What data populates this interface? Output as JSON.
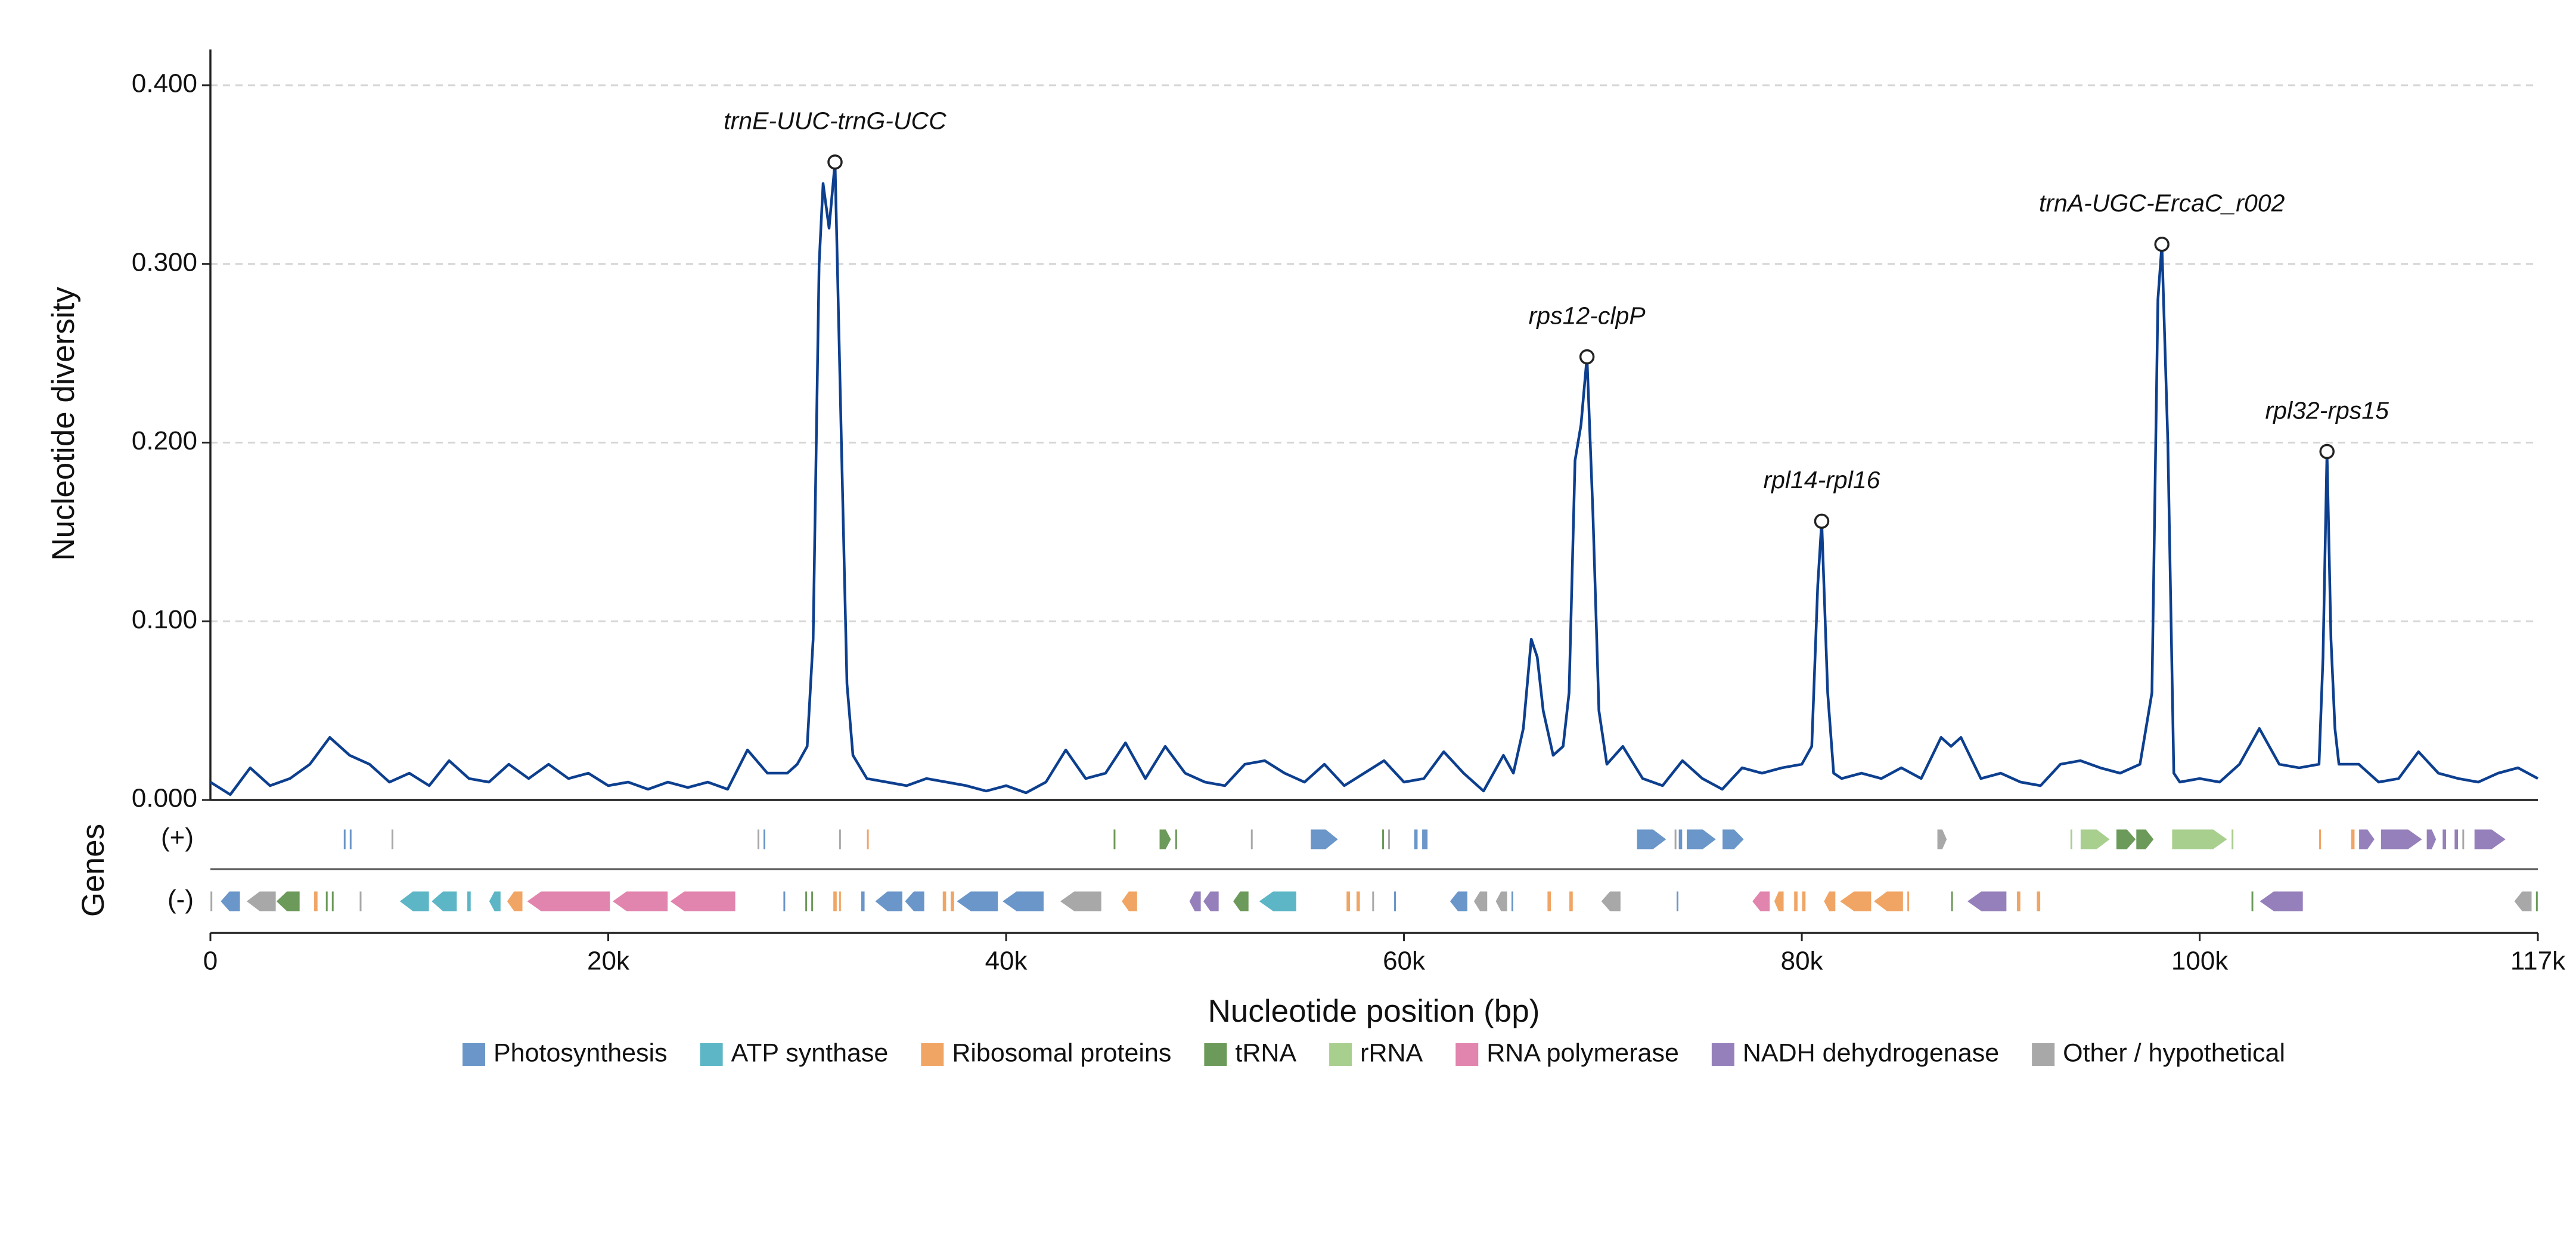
{
  "chart_data": {
    "type": "line",
    "xlabel": "Nucleotide position (bp)",
    "ylabel": "Nucleotide diversity",
    "track_label": "Genes",
    "strand_labels": [
      "(+)",
      "(-)"
    ],
    "xlim": [
      0,
      117000
    ],
    "ylim": [
      0,
      0.42
    ],
    "xticks": [
      0,
      {
        "value": 20000,
        "label": "20k"
      },
      {
        "value": 40000,
        "label": "40k"
      },
      {
        "value": 60000,
        "label": "60k"
      },
      {
        "value": 80000,
        "label": "80k"
      },
      {
        "value": 100000,
        "label": "100k"
      },
      {
        "value": 117000,
        "label": "117k"
      }
    ],
    "yticks": [
      {
        "value": 0,
        "label": "0.000"
      },
      {
        "value": 0.1,
        "label": "0.100"
      },
      {
        "value": 0.2,
        "label": "0.200"
      },
      {
        "value": 0.3,
        "label": "0.300"
      },
      {
        "value": 0.4,
        "label": "0.400"
      }
    ],
    "grid": true,
    "x": [
      0,
      1000,
      2000,
      3000,
      4000,
      5000,
      6000,
      7000,
      8000,
      9000,
      10000,
      11000,
      12000,
      13000,
      14000,
      15000,
      16000,
      17000,
      18000,
      19000,
      20000,
      21000,
      22000,
      23000,
      24000,
      25000,
      26000,
      27000,
      28000,
      29000,
      29500,
      30000,
      30300,
      30600,
      30800,
      31100,
      31400,
      31700,
      32000,
      32300,
      33000,
      34000,
      35000,
      36000,
      37000,
      38000,
      39000,
      40000,
      41000,
      42000,
      43000,
      44000,
      45000,
      46000,
      47000,
      48000,
      49000,
      50000,
      51000,
      52000,
      53000,
      54000,
      55000,
      56000,
      57000,
      58000,
      59000,
      60000,
      61000,
      62000,
      63000,
      64000,
      65000,
      65500,
      66000,
      66400,
      66700,
      67000,
      67500,
      68000,
      68300,
      68600,
      68900,
      69200,
      69500,
      69800,
      70200,
      71000,
      72000,
      73000,
      74000,
      75000,
      76000,
      77000,
      78000,
      79000,
      80000,
      80500,
      80800,
      81000,
      81300,
      81600,
      82000,
      83000,
      84000,
      85000,
      86000,
      87000,
      87500,
      88000,
      89000,
      90000,
      91000,
      92000,
      93000,
      94000,
      95000,
      96000,
      97000,
      97600,
      97900,
      98100,
      98400,
      98700,
      99000,
      100000,
      101000,
      102000,
      103000,
      104000,
      105000,
      106000,
      106200,
      106400,
      106600,
      106800,
      107000,
      108000,
      109000,
      110000,
      111000,
      112000,
      113000,
      114000,
      115000,
      116000,
      117000
    ],
    "series": [
      {
        "color": "#0d3f8f",
        "values": [
          0.01,
          0.003,
          0.018,
          0.008,
          0.012,
          0.02,
          0.035,
          0.025,
          0.02,
          0.01,
          0.015,
          0.008,
          0.022,
          0.012,
          0.01,
          0.02,
          0.012,
          0.02,
          0.012,
          0.015,
          0.008,
          0.01,
          0.006,
          0.01,
          0.007,
          0.01,
          0.006,
          0.028,
          0.015,
          0.015,
          0.02,
          0.03,
          0.09,
          0.3,
          0.345,
          0.32,
          0.357,
          0.21,
          0.065,
          0.025,
          0.012,
          0.01,
          0.008,
          0.012,
          0.01,
          0.008,
          0.005,
          0.008,
          0.004,
          0.01,
          0.028,
          0.012,
          0.015,
          0.032,
          0.012,
          0.03,
          0.015,
          0.01,
          0.008,
          0.02,
          0.022,
          0.015,
          0.01,
          0.02,
          0.008,
          0.015,
          0.022,
          0.01,
          0.012,
          0.027,
          0.015,
          0.005,
          0.025,
          0.015,
          0.04,
          0.09,
          0.08,
          0.05,
          0.025,
          0.03,
          0.06,
          0.19,
          0.21,
          0.248,
          0.16,
          0.05,
          0.02,
          0.03,
          0.012,
          0.008,
          0.022,
          0.012,
          0.006,
          0.018,
          0.015,
          0.018,
          0.02,
          0.03,
          0.12,
          0.156,
          0.06,
          0.015,
          0.012,
          0.015,
          0.012,
          0.018,
          0.012,
          0.035,
          0.03,
          0.035,
          0.012,
          0.015,
          0.01,
          0.008,
          0.02,
          0.022,
          0.018,
          0.015,
          0.02,
          0.06,
          0.28,
          0.311,
          0.2,
          0.015,
          0.01,
          0.012,
          0.01,
          0.02,
          0.04,
          0.02,
          0.018,
          0.02,
          0.08,
          0.195,
          0.09,
          0.04,
          0.02,
          0.02,
          0.01,
          0.012,
          0.027,
          0.015,
          0.012,
          0.01,
          0.015,
          0.018,
          0.012
        ]
      }
    ],
    "annotations": [
      {
        "text": "trnE-UUC-trnG-UCC",
        "x": 31400,
        "y": 0.357
      },
      {
        "text": "rps12-clpP",
        "x": 69200,
        "y": 0.248
      },
      {
        "text": "rpl14-rpl16",
        "x": 81000,
        "y": 0.156
      },
      {
        "text": "trnA-UGC-ErcaC_r002",
        "x": 98100,
        "y": 0.311
      },
      {
        "text": "rpl32-rps15",
        "x": 106400,
        "y": 0.195
      }
    ],
    "gene_categories": [
      {
        "name": "Photosynthesis",
        "color": "#6a96c9"
      },
      {
        "name": "ATP synthase",
        "color": "#5cb6c6"
      },
      {
        "name": "Ribosomal proteins",
        "color": "#f0a565"
      },
      {
        "name": "tRNA",
        "color": "#6c9a5a"
      },
      {
        "name": "rRNA",
        "color": "#a9cf8f"
      },
      {
        "name": "RNA polymerase",
        "color": "#e184ae"
      },
      {
        "name": "NADH dehydrogenase",
        "color": "#9580bb"
      },
      {
        "name": "Other / hypothetical",
        "color": "#a8a8a8"
      }
    ],
    "genes": [
      {
        "start": 6700,
        "end": 6800,
        "strand": "+",
        "category": "Photosynthesis"
      },
      {
        "start": 7000,
        "end": 7100,
        "strand": "+",
        "category": "Photosynthesis"
      },
      {
        "start": 9100,
        "end": 9200,
        "strand": "+",
        "category": "Other / hypothetical"
      },
      {
        "start": 27500,
        "end": 27600,
        "strand": "+",
        "category": "Other / hypothetical"
      },
      {
        "start": 27800,
        "end": 27900,
        "strand": "+",
        "category": "Photosynthesis"
      },
      {
        "start": 31600,
        "end": 31700,
        "strand": "+",
        "category": "Other / hypothetical"
      },
      {
        "start": 33000,
        "end": 33100,
        "strand": "+",
        "category": "Ribosomal proteins"
      },
      {
        "start": 45400,
        "end": 45500,
        "strand": "+",
        "category": "tRNA"
      },
      {
        "start": 47700,
        "end": 48300,
        "strand": "+",
        "category": "tRNA"
      },
      {
        "start": 48500,
        "end": 48600,
        "strand": "+",
        "category": "tRNA"
      },
      {
        "start": 52300,
        "end": 52400,
        "strand": "+",
        "category": "Other / hypothetical"
      },
      {
        "start": 55300,
        "end": 56700,
        "strand": "+",
        "category": "Photosynthesis"
      },
      {
        "start": 58900,
        "end": 59000,
        "strand": "+",
        "category": "tRNA"
      },
      {
        "start": 59200,
        "end": 59300,
        "strand": "+",
        "category": "Other / hypothetical"
      },
      {
        "start": 60500,
        "end": 60700,
        "strand": "+",
        "category": "Photosynthesis"
      },
      {
        "start": 60900,
        "end": 61200,
        "strand": "+",
        "category": "Photosynthesis"
      },
      {
        "start": 71700,
        "end": 73200,
        "strand": "+",
        "category": "Photosynthesis"
      },
      {
        "start": 73600,
        "end": 73700,
        "strand": "+",
        "category": "Other / hypothetical"
      },
      {
        "start": 73800,
        "end": 74000,
        "strand": "+",
        "category": "Photosynthesis"
      },
      {
        "start": 74200,
        "end": 75700,
        "strand": "+",
        "category": "Photosynthesis"
      },
      {
        "start": 76000,
        "end": 77100,
        "strand": "+",
        "category": "Photosynthesis"
      },
      {
        "start": 86800,
        "end": 87300,
        "strand": "+",
        "category": "Other / hypothetical"
      },
      {
        "start": 93500,
        "end": 93600,
        "strand": "+",
        "category": "rRNA"
      },
      {
        "start": 94000,
        "end": 95500,
        "strand": "+",
        "category": "rRNA"
      },
      {
        "start": 95800,
        "end": 96800,
        "strand": "+",
        "category": "tRNA"
      },
      {
        "start": 96800,
        "end": 97700,
        "strand": "+",
        "category": "tRNA"
      },
      {
        "start": 98600,
        "end": 101400,
        "strand": "+",
        "category": "rRNA"
      },
      {
        "start": 101600,
        "end": 101700,
        "strand": "+",
        "category": "rRNA"
      },
      {
        "start": 106000,
        "end": 106100,
        "strand": "+",
        "category": "Ribosomal proteins"
      },
      {
        "start": 107600,
        "end": 107800,
        "strand": "+",
        "category": "Ribosomal proteins"
      },
      {
        "start": 108000,
        "end": 108800,
        "strand": "+",
        "category": "NADH dehydrogenase"
      },
      {
        "start": 109100,
        "end": 111200,
        "strand": "+",
        "category": "NADH dehydrogenase"
      },
      {
        "start": 111400,
        "end": 111900,
        "strand": "+",
        "category": "NADH dehydrogenase"
      },
      {
        "start": 112200,
        "end": 112400,
        "strand": "+",
        "category": "NADH dehydrogenase"
      },
      {
        "start": 112800,
        "end": 113000,
        "strand": "+",
        "category": "NADH dehydrogenase"
      },
      {
        "start": 113200,
        "end": 113300,
        "strand": "+",
        "category": "Other / hypothetical"
      },
      {
        "start": 113800,
        "end": 115400,
        "strand": "+",
        "category": "NADH dehydrogenase"
      },
      {
        "start": 0,
        "end": 100,
        "strand": "-",
        "category": "Other / hypothetical"
      },
      {
        "start": 500,
        "end": 1500,
        "strand": "-",
        "category": "Photosynthesis"
      },
      {
        "start": 1800,
        "end": 3300,
        "strand": "-",
        "category": "Other / hypothetical"
      },
      {
        "start": 3300,
        "end": 4500,
        "strand": "-",
        "category": "tRNA"
      },
      {
        "start": 5200,
        "end": 5400,
        "strand": "-",
        "category": "Ribosomal proteins"
      },
      {
        "start": 5800,
        "end": 5900,
        "strand": "-",
        "category": "tRNA"
      },
      {
        "start": 6100,
        "end": 6200,
        "strand": "-",
        "category": "tRNA"
      },
      {
        "start": 7500,
        "end": 7600,
        "strand": "-",
        "category": "Other / hypothetical"
      },
      {
        "start": 9500,
        "end": 11000,
        "strand": "-",
        "category": "ATP synthase"
      },
      {
        "start": 11100,
        "end": 12400,
        "strand": "-",
        "category": "ATP synthase"
      },
      {
        "start": 12900,
        "end": 13100,
        "strand": "-",
        "category": "ATP synthase"
      },
      {
        "start": 14000,
        "end": 14600,
        "strand": "-",
        "category": "ATP synthase"
      },
      {
        "start": 14900,
        "end": 15700,
        "strand": "-",
        "category": "Ribosomal proteins"
      },
      {
        "start": 15900,
        "end": 20100,
        "strand": "-",
        "category": "RNA polymerase"
      },
      {
        "start": 20200,
        "end": 23000,
        "strand": "-",
        "category": "RNA polymerase"
      },
      {
        "start": 23100,
        "end": 26400,
        "strand": "-",
        "category": "RNA polymerase"
      },
      {
        "start": 28800,
        "end": 28900,
        "strand": "-",
        "category": "Photosynthesis"
      },
      {
        "start": 29900,
        "end": 30000,
        "strand": "-",
        "category": "tRNA"
      },
      {
        "start": 30200,
        "end": 30300,
        "strand": "-",
        "category": "tRNA"
      },
      {
        "start": 31300,
        "end": 31500,
        "strand": "-",
        "category": "Ribosomal proteins"
      },
      {
        "start": 31600,
        "end": 31700,
        "strand": "-",
        "category": "Ribosomal proteins"
      },
      {
        "start": 32700,
        "end": 32900,
        "strand": "-",
        "category": "Photosynthesis"
      },
      {
        "start": 33400,
        "end": 34800,
        "strand": "-",
        "category": "Photosynthesis"
      },
      {
        "start": 34900,
        "end": 35900,
        "strand": "-",
        "category": "Photosynthesis"
      },
      {
        "start": 36800,
        "end": 37000,
        "strand": "-",
        "category": "Ribosomal proteins"
      },
      {
        "start": 37200,
        "end": 37400,
        "strand": "-",
        "category": "Ribosomal proteins"
      },
      {
        "start": 37500,
        "end": 39600,
        "strand": "-",
        "category": "Photosynthesis"
      },
      {
        "start": 39800,
        "end": 41900,
        "strand": "-",
        "category": "Photosynthesis"
      },
      {
        "start": 42700,
        "end": 44800,
        "strand": "-",
        "category": "Other / hypothetical"
      },
      {
        "start": 45800,
        "end": 46600,
        "strand": "-",
        "category": "Ribosomal proteins"
      },
      {
        "start": 49200,
        "end": 49800,
        "strand": "-",
        "category": "NADH dehydrogenase"
      },
      {
        "start": 49900,
        "end": 50700,
        "strand": "-",
        "category": "NADH dehydrogenase"
      },
      {
        "start": 51400,
        "end": 52200,
        "strand": "-",
        "category": "tRNA"
      },
      {
        "start": 52700,
        "end": 54600,
        "strand": "-",
        "category": "ATP synthase"
      },
      {
        "start": 57100,
        "end": 57300,
        "strand": "-",
        "category": "Ribosomal proteins"
      },
      {
        "start": 57600,
        "end": 57800,
        "strand": "-",
        "category": "Ribosomal proteins"
      },
      {
        "start": 58400,
        "end": 58500,
        "strand": "-",
        "category": "Other / hypothetical"
      },
      {
        "start": 59500,
        "end": 59600,
        "strand": "-",
        "category": "Photosynthesis"
      },
      {
        "start": 62300,
        "end": 63200,
        "strand": "-",
        "category": "Photosynthesis"
      },
      {
        "start": 63500,
        "end": 64200,
        "strand": "-",
        "category": "Other / hypothetical"
      },
      {
        "start": 64600,
        "end": 65200,
        "strand": "-",
        "category": "Other / hypothetical"
      },
      {
        "start": 65400,
        "end": 65500,
        "strand": "-",
        "category": "Photosynthesis"
      },
      {
        "start": 67200,
        "end": 67400,
        "strand": "-",
        "category": "Ribosomal proteins"
      },
      {
        "start": 68300,
        "end": 68500,
        "strand": "-",
        "category": "Ribosomal proteins"
      },
      {
        "start": 69900,
        "end": 70900,
        "strand": "-",
        "category": "Other / hypothetical"
      },
      {
        "start": 73700,
        "end": 73800,
        "strand": "-",
        "category": "Photosynthesis"
      },
      {
        "start": 77500,
        "end": 78400,
        "strand": "-",
        "category": "RNA polymerase"
      },
      {
        "start": 78600,
        "end": 79100,
        "strand": "-",
        "category": "Ribosomal proteins"
      },
      {
        "start": 79600,
        "end": 79800,
        "strand": "-",
        "category": "Ribosomal proteins"
      },
      {
        "start": 80000,
        "end": 80200,
        "strand": "-",
        "category": "Ribosomal proteins"
      },
      {
        "start": 81100,
        "end": 81700,
        "strand": "-",
        "category": "Ribosomal proteins"
      },
      {
        "start": 81900,
        "end": 83500,
        "strand": "-",
        "category": "Ribosomal proteins"
      },
      {
        "start": 83600,
        "end": 85100,
        "strand": "-",
        "category": "Ribosomal proteins"
      },
      {
        "start": 85300,
        "end": 85400,
        "strand": "-",
        "category": "Ribosomal proteins"
      },
      {
        "start": 87500,
        "end": 87600,
        "strand": "-",
        "category": "tRNA"
      },
      {
        "start": 88300,
        "end": 90300,
        "strand": "-",
        "category": "NADH dehydrogenase"
      },
      {
        "start": 90800,
        "end": 91000,
        "strand": "-",
        "category": "Ribosomal proteins"
      },
      {
        "start": 91800,
        "end": 92000,
        "strand": "-",
        "category": "Ribosomal proteins"
      },
      {
        "start": 102600,
        "end": 102700,
        "strand": "-",
        "category": "tRNA"
      },
      {
        "start": 103000,
        "end": 105200,
        "strand": "-",
        "category": "NADH dehydrogenase"
      },
      {
        "start": 115800,
        "end": 116700,
        "strand": "-",
        "category": "Other / hypothetical"
      },
      {
        "start": 116900,
        "end": 117000,
        "strand": "-",
        "category": "tRNA"
      }
    ]
  }
}
